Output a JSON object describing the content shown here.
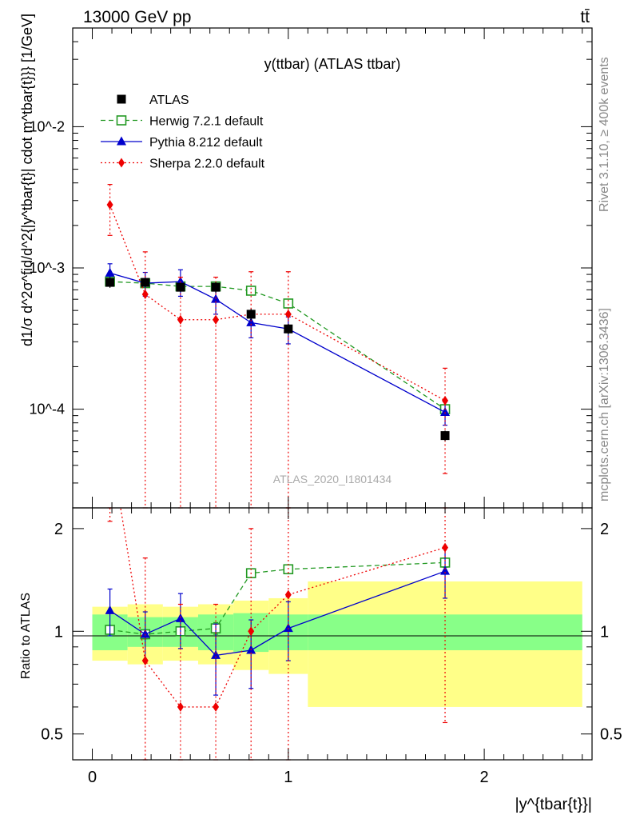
{
  "header": {
    "energy_label": "13000 GeV pp",
    "process_label": "tt̄"
  },
  "side_labels": {
    "rivet": "Rivet 3.1.10, ≥ 400k events",
    "mcplots": "mcplots.cern.ch [arXiv:1306.3436]"
  },
  "watermark": "ATLAS_2020_I1801434",
  "chart_data": {
    "type": "line",
    "title": "y(ttbar) (ATLAS ttbar)",
    "xlabel": "|y^{tbar{t}}|",
    "ylabel": "d1/σ d^2σ^fid/d^2{|y^tbar{t}| cdot m^tbar{t}}} [1/GeV]",
    "ratio_ylabel": "Ratio to ATLAS",
    "yscale": "log",
    "xlim": [
      -0.1,
      2.55
    ],
    "ylim": [
      2e-05,
      0.05
    ],
    "ratio_ylim": [
      0.42,
      2.3
    ],
    "x_ticks": [
      "0",
      "1",
      "2"
    ],
    "y_ticks": [
      "10^-4",
      "10^-3",
      "10^-2"
    ],
    "ratio_ticks": [
      "0.5",
      "1",
      "2"
    ],
    "legend_position": "top-left",
    "grid": false,
    "bins": [
      [
        0.0,
        0.18
      ],
      [
        0.18,
        0.36
      ],
      [
        0.36,
        0.54
      ],
      [
        0.54,
        0.72
      ],
      [
        0.72,
        0.9
      ],
      [
        0.9,
        1.1
      ],
      [
        1.1,
        2.5
      ]
    ],
    "x": [
      0.09,
      0.27,
      0.45,
      0.63,
      0.81,
      1.0,
      1.8
    ],
    "data": {
      "name": "ATLAS",
      "values": [
        0.00079,
        0.00079,
        0.00073,
        0.00073,
        0.00047,
        0.00037,
        6.5e-05
      ],
      "band_stat": [
        0.12,
        0.1,
        0.1,
        0.12,
        0.13,
        0.12,
        0.12
      ],
      "band_total": [
        0.18,
        0.2,
        0.18,
        0.2,
        0.23,
        0.25,
        0.4
      ]
    },
    "series": [
      {
        "name": "Herwig 7.2.1 default",
        "color": "#229922",
        "dash": "6,4",
        "marker": "open-square",
        "values": [
          0.0008,
          0.00078,
          0.00074,
          0.00074,
          0.00069,
          0.00056,
          0.0001
        ],
        "errors": [
          3e-05,
          3e-05,
          3e-05,
          3e-05,
          3e-05,
          3e-05,
          5e-06
        ],
        "ratio": [
          1.01,
          0.98,
          1.0,
          1.02,
          1.48,
          1.52,
          1.59
        ],
        "ratio_err": [
          0.03,
          0.03,
          0.03,
          0.04,
          0.04,
          0.04,
          0.05
        ]
      },
      {
        "name": "Pythia 8.212 default",
        "color": "#0000cc",
        "dash": "",
        "marker": "triangle",
        "values": [
          0.00092,
          0.00078,
          0.0008,
          0.0006,
          0.00041,
          0.00037,
          9.5e-05
        ],
        "errors": [
          0.00015,
          0.00015,
          0.00017,
          0.00013,
          9e-05,
          8e-05,
          1.8e-05
        ],
        "ratio": [
          1.15,
          0.98,
          1.09,
          0.85,
          0.88,
          1.02,
          1.5
        ],
        "ratio_err": [
          0.18,
          0.16,
          0.2,
          0.2,
          0.2,
          0.2,
          0.25
        ]
      },
      {
        "name": "Sherpa 2.2.0 default",
        "color": "#ee0000",
        "dash": "2,3",
        "marker": "diamond",
        "values": [
          0.0028,
          0.00065,
          0.00043,
          0.00043,
          0.00047,
          0.00047,
          0.000115
        ],
        "errors": [
          0.0011,
          0.00065,
          0.00043,
          0.00043,
          0.00047,
          0.00047,
          8e-05
        ],
        "ratio": [
          3.6,
          0.82,
          0.6,
          0.6,
          1.0,
          1.28,
          1.76
        ],
        "ratio_err": [
          1.5,
          0.82,
          0.6,
          0.6,
          1.0,
          1.28,
          1.22
        ]
      }
    ]
  }
}
